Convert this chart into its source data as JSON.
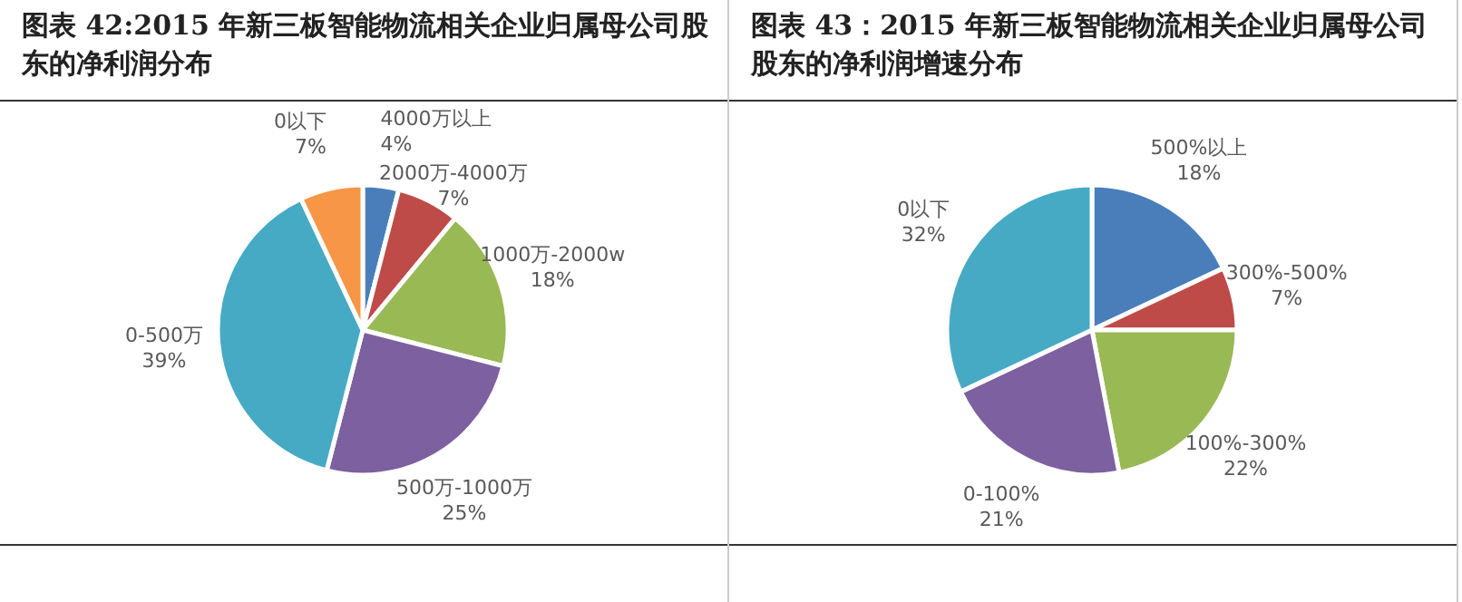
{
  "chart_data": [
    {
      "type": "pie",
      "title": "图表 42:2015 年新三板智能物流相关企业归属母公司股东的净利润分布",
      "categories": [
        "4000万以上",
        "2000万-4000万",
        "1000万-2000w",
        "500万-1000万",
        "0-500万",
        "0以下"
      ],
      "values": [
        4,
        7,
        18,
        25,
        39,
        7
      ],
      "colors": [
        "#4a7ebb",
        "#be4b48",
        "#98b954",
        "#7d60a0",
        "#46aac5",
        "#f79646"
      ],
      "value_labels": [
        "4%",
        "7%",
        "18%",
        "25%",
        "39%",
        "7%"
      ]
    },
    {
      "type": "pie",
      "title": "图表 43：2015 年新三板智能物流相关企业归属母公司股东的净利润增速分布",
      "categories": [
        "500%以上",
        "300%-500%",
        "100%-300%",
        "0-100%",
        "0以下"
      ],
      "values": [
        18,
        7,
        22,
        21,
        32
      ],
      "colors": [
        "#4a7ebb",
        "#be4b48",
        "#98b954",
        "#7d60a0",
        "#46aac5"
      ],
      "value_labels": [
        "18%",
        "7%",
        "22%",
        "21%",
        "32%"
      ]
    }
  ]
}
